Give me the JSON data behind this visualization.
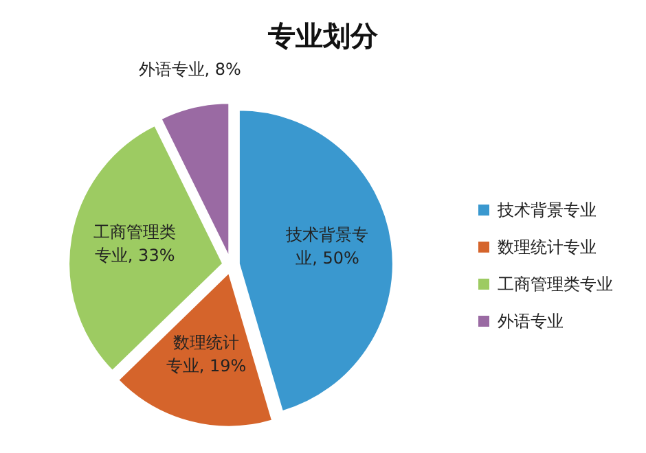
{
  "chart_data": {
    "type": "pie",
    "title": "专业划分",
    "categories": [
      "技术背景专业",
      "数理统计专业",
      "工商管理类专业",
      "外语专业"
    ],
    "values": [
      50,
      19,
      33,
      8
    ],
    "value_labels": [
      "技术背景专业, 50%",
      "数理统计专业, 19%",
      "工商管理类专业, 33%",
      "外语专业, 8%"
    ],
    "colors": [
      "#3a98cf",
      "#d5642b",
      "#9dcb62",
      "#9a6aa3"
    ],
    "legend": "right"
  }
}
